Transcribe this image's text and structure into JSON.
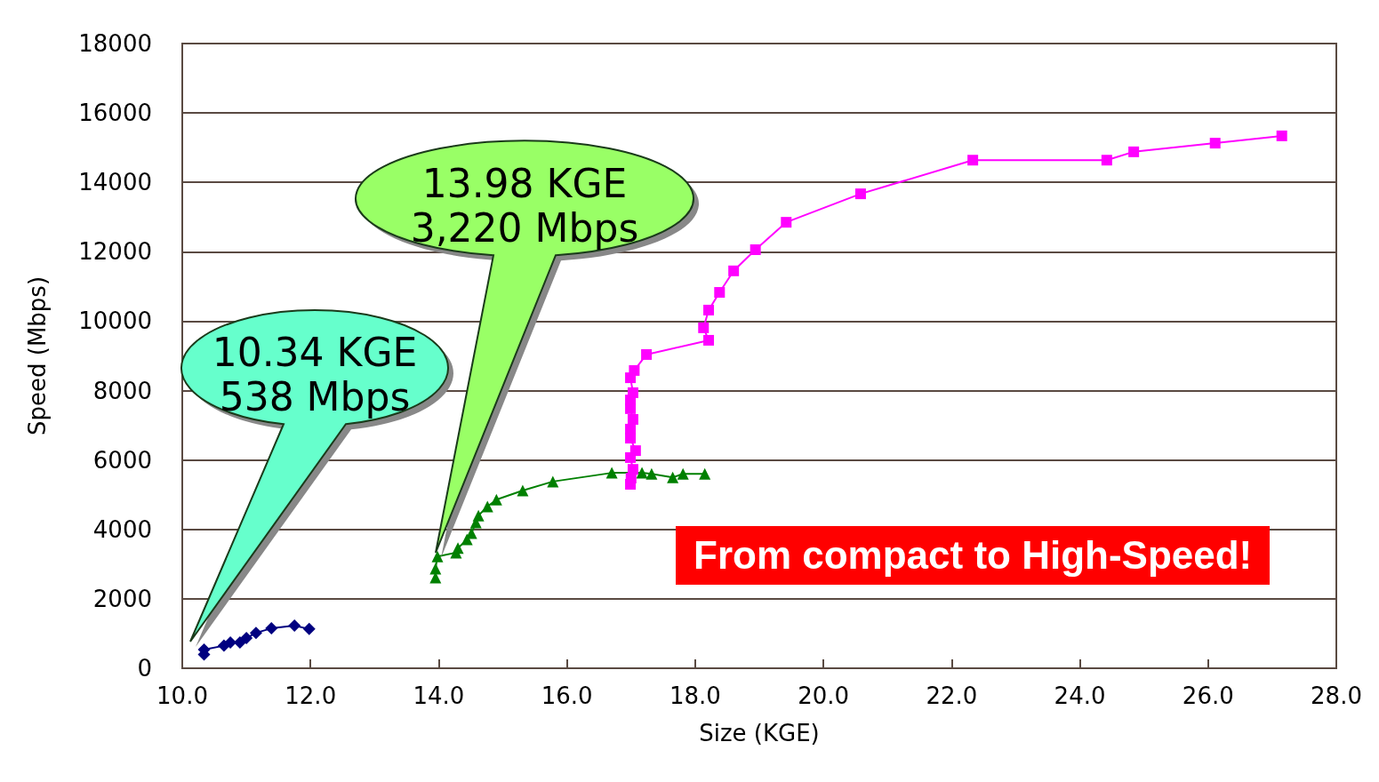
{
  "chart_data": {
    "type": "line",
    "xlabel": "Size (KGE)",
    "ylabel": "Speed (Mbps)",
    "xlim": [
      10,
      28
    ],
    "xticks": [
      {
        "value": 10,
        "label": "10.0"
      },
      {
        "value": 12,
        "label": "12.0"
      },
      {
        "value": 14,
        "label": "14.0"
      },
      {
        "value": 16,
        "label": "16.0"
      },
      {
        "value": 18,
        "label": "18.0"
      },
      {
        "value": 20,
        "label": "20.0"
      },
      {
        "value": 22,
        "label": "22.0"
      },
      {
        "value": 24,
        "label": "24.0"
      },
      {
        "value": 26,
        "label": "26.0"
      },
      {
        "value": 28,
        "label": "28.0"
      }
    ],
    "ylim": [
      0,
      18000
    ],
    "yticks": [
      0,
      2000,
      4000,
      6000,
      8000,
      10000,
      12000,
      14000,
      16000,
      18000
    ],
    "grid": "y",
    "series": [
      {
        "color": "#000080",
        "marker": "diamond",
        "x": [
          10.34,
          10.34,
          10.65,
          10.75,
          10.9,
          11.0,
          11.15,
          11.39,
          11.75,
          11.98
        ],
        "values": [
          400,
          538,
          650,
          740,
          740,
          870,
          1020,
          1150,
          1230,
          1130
        ]
      },
      {
        "color": "#008000",
        "marker": "triangle",
        "x": [
          13.95,
          13.95,
          13.98,
          14.27,
          14.3,
          14.44,
          14.51,
          14.58,
          14.62,
          14.76,
          14.9,
          15.31,
          15.78,
          16.7,
          17.17,
          17.32,
          17.65,
          17.81,
          18.15
        ],
        "values": [
          2610,
          2870,
          3220,
          3330,
          3460,
          3710,
          3890,
          4200,
          4400,
          4660,
          4860,
          5120,
          5380,
          5630,
          5630,
          5600,
          5500,
          5600,
          5600
        ]
      },
      {
        "color": "#ff00ff",
        "marker": "square",
        "x": [
          16.99,
          17.0,
          17.03,
          16.99,
          17.07,
          16.99,
          16.99,
          17.03,
          16.99,
          16.99,
          17.03,
          16.99,
          17.05,
          17.24,
          18.21,
          18.13,
          18.21,
          18.38,
          18.6,
          18.94,
          19.42,
          20.58,
          22.33,
          24.42,
          24.84,
          26.11,
          27.15
        ],
        "values": [
          5300,
          5480,
          5730,
          6070,
          6270,
          6630,
          6890,
          7170,
          7480,
          7730,
          7940,
          8370,
          8580,
          9040,
          9450,
          9810,
          10320,
          10830,
          11450,
          12060,
          12850,
          13670,
          14640,
          14640,
          14880,
          15130,
          15340
        ]
      }
    ],
    "annotations": [
      "10.34 KGE\n538 Mbps",
      "13.98 KGE\n3,220 Mbps",
      "From compact to High-Speed!"
    ]
  }
}
